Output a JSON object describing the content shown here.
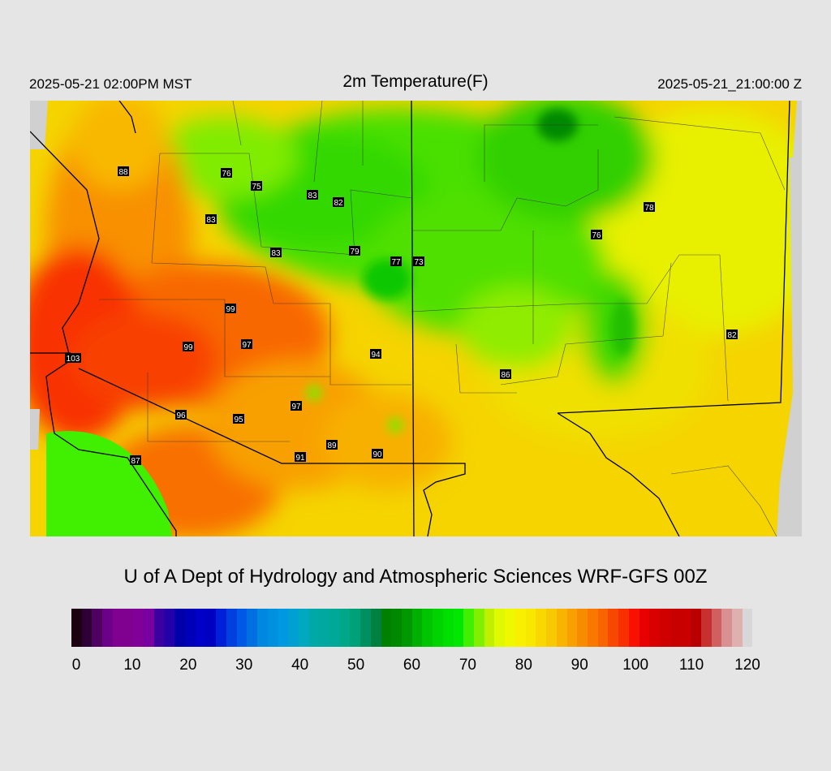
{
  "header": {
    "local_time": "2025-05-21 02:00PM MST",
    "title": "2m Temperature(F)",
    "valid_time": "2025-05-21_21:00:00 Z"
  },
  "credit": "U of A Dept of Hydrology and Atmospheric Sciences WRF-GFS 00Z",
  "colorbar": {
    "ticks": [
      "0",
      "10",
      "20",
      "30",
      "40",
      "50",
      "60",
      "70",
      "80",
      "90",
      "100",
      "110",
      "120"
    ],
    "range": [
      0,
      120
    ],
    "colors": [
      "#1a0010",
      "#2e0038",
      "#500060",
      "#6c0088",
      "#800090",
      "#800090",
      "#800098",
      "#7800a0",
      "#3c00a0",
      "#2400a8",
      "#0000a8",
      "#0000b8",
      "#0000c8",
      "#0000c0",
      "#0020d8",
      "#0040e0",
      "#0058e8",
      "#0070e0",
      "#0088e0",
      "#0090e0",
      "#0098e0",
      "#00a0d0",
      "#00a8c0",
      "#00a8a8",
      "#00a8a0",
      "#00a898",
      "#00a888",
      "#00a078",
      "#009060",
      "#008040",
      "#008000",
      "#008800",
      "#009800",
      "#00b000",
      "#00c400",
      "#00d400",
      "#00e000",
      "#00e800",
      "#40f000",
      "#80f000",
      "#c0f000",
      "#e0f800",
      "#f0f800",
      "#f8f000",
      "#f8e800",
      "#f8d800",
      "#f8c800",
      "#f8b400",
      "#f8a000",
      "#f88c00",
      "#f87800",
      "#f86400",
      "#f84800",
      "#f83000",
      "#f81000",
      "#e80000",
      "#d80000",
      "#d00000",
      "#c80000",
      "#c80000",
      "#b80000",
      "#c83030",
      "#d06060",
      "#d89090",
      "#e0b0b0",
      "#d8d8d8"
    ]
  },
  "map": {
    "variable": "2m temperature (F)",
    "stations": [
      {
        "label": "88"
      },
      {
        "label": "76"
      },
      {
        "label": "75"
      },
      {
        "label": "83"
      },
      {
        "label": "82"
      },
      {
        "label": "83"
      },
      {
        "label": "83"
      },
      {
        "label": "79"
      },
      {
        "label": "77"
      },
      {
        "label": "73"
      },
      {
        "label": "78"
      },
      {
        "label": "76"
      },
      {
        "label": "99"
      },
      {
        "label": "103"
      },
      {
        "label": "99"
      },
      {
        "label": "97"
      },
      {
        "label": "94"
      },
      {
        "label": "86"
      },
      {
        "label": "82"
      },
      {
        "label": "97"
      },
      {
        "label": "96"
      },
      {
        "label": "95"
      },
      {
        "label": "89"
      },
      {
        "label": "91"
      },
      {
        "label": "90"
      },
      {
        "label": "87"
      }
    ]
  }
}
